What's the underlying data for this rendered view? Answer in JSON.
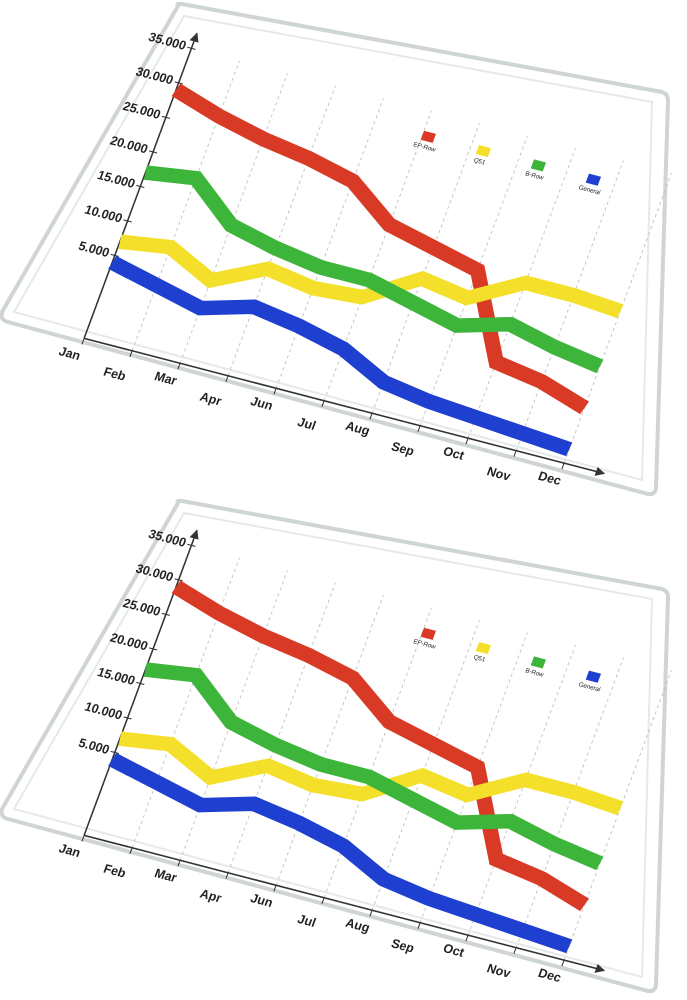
{
  "chart_data": [
    {
      "type": "line",
      "categories": [
        "Jan",
        "Feb",
        "Mar",
        "Apr",
        "Jun",
        "Jul",
        "Aug",
        "Sep",
        "Oct",
        "Nov",
        "Dec"
      ],
      "ylim": [
        -7000,
        35000
      ],
      "yticks": [
        {
          "value": 5000,
          "label": "5.000"
        },
        {
          "value": 10000,
          "label": "10.000"
        },
        {
          "value": 15000,
          "label": "15.000"
        },
        {
          "value": 20000,
          "label": "20.000"
        },
        {
          "value": 25000,
          "label": "25.000"
        },
        {
          "value": 30000,
          "label": "30.000"
        },
        {
          "value": 35000,
          "label": "35.000"
        }
      ],
      "series": [
        {
          "name": "EP-Row",
          "color": "#d93a26",
          "values": [
            29000,
            27000,
            25500,
            24500,
            23000,
            18500,
            17000,
            15500,
            4000,
            3000,
            1000
          ]
        },
        {
          "name": "Q51",
          "color": "#f4e02a",
          "values": [
            7000,
            8000,
            5000,
            8500,
            7500,
            8000,
            12500,
            11500,
            15500,
            15500,
            15000
          ]
        },
        {
          "name": "B-Row",
          "color": "#3db43a",
          "values": [
            17000,
            18000,
            13000,
            11500,
            10500,
            10500,
            9000,
            7500,
            9500,
            8000,
            7000
          ]
        },
        {
          "name": "General",
          "color": "#1f3fd0",
          "values": [
            4000,
            2500,
            1000,
            3000,
            2000,
            500,
            -2500,
            -3500,
            -4000,
            -4500,
            -5000
          ]
        }
      ]
    },
    {
      "type": "line",
      "categories": [
        "Jan",
        "Feb",
        "Mar",
        "Apr",
        "Jun",
        "Jul",
        "Aug",
        "Sep",
        "Oct",
        "Nov",
        "Dec"
      ],
      "ylim": [
        -7000,
        35000
      ],
      "yticks": [
        {
          "value": 5000,
          "label": "5.000"
        },
        {
          "value": 10000,
          "label": "10.000"
        },
        {
          "value": 15000,
          "label": "15.000"
        },
        {
          "value": 20000,
          "label": "20.000"
        },
        {
          "value": 25000,
          "label": "25.000"
        },
        {
          "value": 30000,
          "label": "30.000"
        },
        {
          "value": 35000,
          "label": "35.000"
        }
      ],
      "series": [
        {
          "name": "EP-Row",
          "color": "#d93a26",
          "values": [
            29000,
            27000,
            25500,
            24500,
            23000,
            18500,
            17000,
            15500,
            4000,
            3000,
            1000
          ]
        },
        {
          "name": "Q51",
          "color": "#f4e02a",
          "values": [
            7000,
            8000,
            5000,
            8500,
            7500,
            8000,
            12500,
            11500,
            15500,
            15500,
            15000
          ]
        },
        {
          "name": "B-Row",
          "color": "#3db43a",
          "values": [
            17000,
            18000,
            13000,
            11500,
            10500,
            10500,
            9000,
            7500,
            9500,
            8000,
            7000
          ]
        },
        {
          "name": "General",
          "color": "#1f3fd0",
          "values": [
            4000,
            2500,
            1000,
            3000,
            2000,
            500,
            -2500,
            -3500,
            -4000,
            -4500,
            -5000
          ]
        }
      ]
    }
  ]
}
